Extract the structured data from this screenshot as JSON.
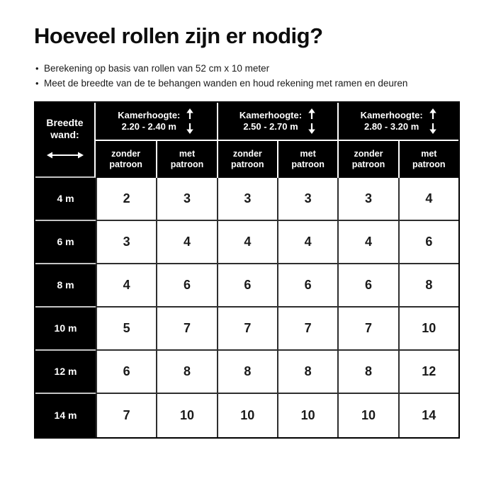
{
  "page": {
    "title": "Hoeveel rollen zijn er nodig?",
    "bullets": [
      "Berekening op basis van rollen van 52 cm x 10 meter",
      "Meet de breedte van de te behangen wanden en houd rekening met ramen en deuren"
    ],
    "bullet_glyph": "•"
  },
  "table": {
    "corner": {
      "line1": "Breedte",
      "line2": "wand:",
      "icon": "horizontal-double-arrow-icon"
    },
    "groups": [
      {
        "label": "Kamerhoogte:",
        "range": "2.20 - 2.40 m",
        "icon": "vertical-double-arrow-icon"
      },
      {
        "label": "Kamerhoogte:",
        "range": "2.50 - 2.70 m",
        "icon": "vertical-double-arrow-icon"
      },
      {
        "label": "Kamerhoogte:",
        "range": "2.80 - 3.20 m",
        "icon": "vertical-double-arrow-icon"
      }
    ],
    "subheaders": [
      "zonder patroon",
      "met patroon"
    ],
    "rows": [
      {
        "label": "4 m",
        "values": [
          "2",
          "3",
          "3",
          "3",
          "3",
          "4"
        ]
      },
      {
        "label": "6 m",
        "values": [
          "3",
          "4",
          "4",
          "4",
          "4",
          "6"
        ]
      },
      {
        "label": "8 m",
        "values": [
          "4",
          "6",
          "6",
          "6",
          "6",
          "8"
        ]
      },
      {
        "label": "10 m",
        "values": [
          "5",
          "7",
          "7",
          "7",
          "7",
          "10"
        ]
      },
      {
        "label": "12 m",
        "values": [
          "6",
          "8",
          "8",
          "8",
          "8",
          "12"
        ]
      },
      {
        "label": "14 m",
        "values": [
          "7",
          "10",
          "10",
          "10",
          "10",
          "14"
        ]
      }
    ],
    "colors": {
      "header_bg": "#000000",
      "header_text": "#ffffff",
      "value_text": "#1a1a1a",
      "grid_dark": "#2e2e2e",
      "grid_light_on_black": "#c4c4c4",
      "outer_border": "#000000"
    }
  },
  "chart_data": {
    "type": "table",
    "title": "Hoeveel rollen zijn er nodig?",
    "notes": [
      "Berekening op basis van rollen van 52 cm x 10 meter",
      "Meet de breedte van de te behangen wanden en houd rekening met ramen en deuren"
    ],
    "row_header_label": "Breedte wand:",
    "column_groups": [
      "Kamerhoogte: 2.20 - 2.40 m",
      "Kamerhoogte: 2.50 - 2.70 m",
      "Kamerhoogte: 2.80 - 3.20 m"
    ],
    "sub_columns": [
      "zonder patroon",
      "met patroon"
    ],
    "row_labels": [
      "4 m",
      "6 m",
      "8 m",
      "10 m",
      "12 m",
      "14 m"
    ],
    "values": [
      [
        2,
        3,
        3,
        3,
        3,
        4
      ],
      [
        3,
        4,
        4,
        4,
        4,
        6
      ],
      [
        4,
        6,
        6,
        6,
        6,
        8
      ],
      [
        5,
        7,
        7,
        7,
        7,
        10
      ],
      [
        6,
        8,
        8,
        8,
        8,
        12
      ],
      [
        7,
        10,
        10,
        10,
        10,
        14
      ]
    ]
  }
}
